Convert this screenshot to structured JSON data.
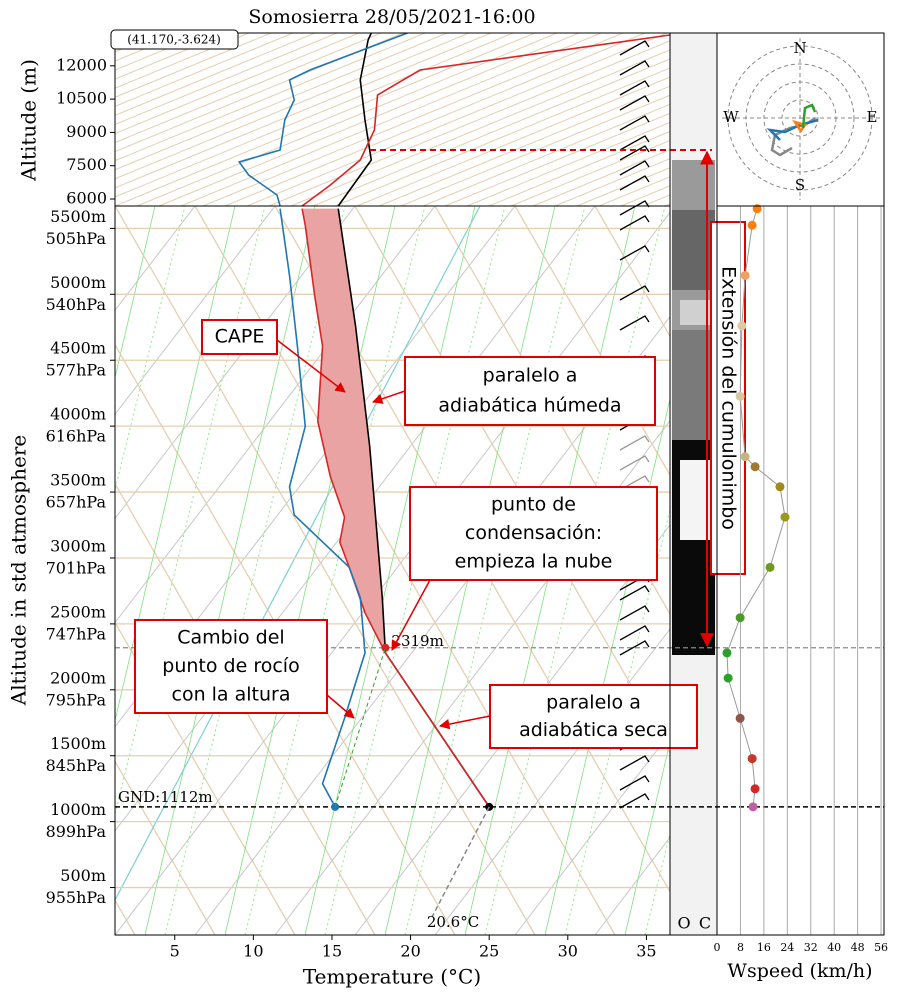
{
  "chart_data": [
    {
      "type": "skewt",
      "title": "Somosierra 28/05/2021-16:00",
      "location_label": "(41.170,-3.624)",
      "xlabel": "Temperature (°C)",
      "ylabel": "Altitude in std atmosphere",
      "xlim": [
        1.2,
        36.5
      ],
      "xticks": [
        5,
        10,
        15,
        20,
        25,
        30,
        35
      ],
      "ylim": [
        140,
        5670
      ],
      "yticks": [
        {
          "value": 500,
          "label": "500m"
        },
        {
          "value": 1000,
          "label": "1000m"
        },
        {
          "value": 1500,
          "label": "1500m"
        },
        {
          "value": 2000,
          "label": "2000m"
        },
        {
          "value": 2500,
          "label": "2500m"
        },
        {
          "value": 3000,
          "label": "3000m"
        },
        {
          "value": 3500,
          "label": "3500m"
        },
        {
          "value": 4000,
          "label": "4000m"
        },
        {
          "value": 4500,
          "label": "4500m"
        },
        {
          "value": 5000,
          "label": "5000m"
        },
        {
          "value": 5500,
          "label": "5500m"
        }
      ],
      "ytick_pressure": [
        "955hPa",
        "899hPa",
        "845hPa",
        "795hPa",
        "747hPa",
        "701hPa",
        "657hPa",
        "616hPa",
        "577hPa",
        "540hPa",
        "505hPa"
      ],
      "series": [
        {
          "color": "#000000",
          "x": [
            25.0,
            18.4,
            18.2,
            17.4,
            16.5,
            15.4
          ],
          "y": [
            1112,
            2280,
            2700,
            3845,
            4760,
            5650
          ]
        },
        {
          "color": "#d62728",
          "x": [
            25.0,
            18.4,
            17.1,
            16.1,
            15.5,
            15.8,
            14.9,
            14.1,
            14.4,
            13.9,
            13.3,
            13.1
          ],
          "y": [
            1112,
            2280,
            2585,
            2929,
            3120,
            3310,
            3616,
            4036,
            4608,
            4990,
            5524,
            5650
          ]
        },
        {
          "color": "#1f77b4",
          "x": [
            15.2,
            14.4,
            15.8,
            17.1,
            16.8,
            16.1,
            12.6,
            12.3,
            13.3,
            12.8,
            12.3,
            11.7
          ],
          "y": [
            1112,
            1288,
            1784,
            2280,
            2700,
            2929,
            3326,
            3540,
            3998,
            4608,
            5143,
            5650
          ]
        }
      ],
      "cape_color": "#eaa3a3",
      "ground": {
        "altitude": 1112,
        "label": "GND:1112m"
      },
      "lcl": {
        "altitude": 2319,
        "temperature": 18.4,
        "label": "2319m"
      },
      "surface_temp": {
        "value": 20.6,
        "label": "20.6°C"
      },
      "column_labels": [
        "O",
        "C"
      ],
      "annotations": [
        {
          "lines": [
            "CAPE"
          ]
        },
        {
          "lines": [
            "paralelo a",
            "adiabática húmeda"
          ]
        },
        {
          "lines": [
            "punto de",
            "condensación:",
            "empieza la nube"
          ]
        },
        {
          "lines": [
            "Cambio del",
            "punto de rocío",
            "con la altura"
          ]
        },
        {
          "lines": [
            "paralelo a",
            "adiabática seca"
          ]
        },
        {
          "lines": [
            "Extensión del cumulonimbo"
          ]
        }
      ]
    },
    {
      "type": "skewt_upper",
      "ylabel": "Altitude (m)",
      "ylim": [
        5685,
        13478
      ],
      "yticks": [
        6000,
        7500,
        9000,
        10500,
        12000
      ],
      "series": [
        {
          "color": "#000000",
          "x": [
            15.4,
            17.5,
            17.1,
            16.8,
            17.3,
            17.5
          ],
          "y": [
            5685,
            7757,
            9559,
            11361,
            13163,
            13478
          ]
        },
        {
          "color": "#d62728",
          "x": [
            13.1,
            14.9,
            16.8,
            17.7,
            17.9,
            20.6,
            36.5
          ],
          "y": [
            5685,
            6631,
            7757,
            9108,
            10685,
            11811,
            13388
          ]
        },
        {
          "color": "#1f77b4",
          "x": [
            11.7,
            11.5,
            9.7,
            9.1,
            11.7,
            12.0,
            12.6,
            12.3,
            13.6,
            19.8
          ],
          "y": [
            5685,
            6180,
            7081,
            7667,
            8207,
            9559,
            10460,
            11361,
            11811,
            13478
          ]
        }
      ],
      "cloud_top": 8207
    },
    {
      "type": "wind_profile",
      "xlabel": "Wspeed (km/h)",
      "xlim": [
        0,
        57
      ],
      "xticks": [
        0,
        8,
        16,
        24,
        32,
        40,
        48,
        56
      ],
      "values": [
        12.3,
        13.0,
        12.0,
        7.9,
        3.8,
        3.4,
        7.9,
        18.1,
        23.2,
        21.5,
        13.0,
        9.6,
        7.9,
        8.5,
        9.6,
        12.0,
        13.7
      ],
      "altitudes": [
        1112,
        1249,
        1478,
        1784,
        2089,
        2280,
        2547,
        2929,
        3310,
        3540,
        3692,
        3768,
        4226,
        4761,
        5143,
        5524,
        5650
      ],
      "colors": [
        "#c060a0",
        "#d62728",
        "#c0392b",
        "#8c564b",
        "#2ca02c",
        "#2ca02c",
        "#4a9a2a",
        "#6e9a20",
        "#9a9a1a",
        "#a08a20",
        "#a07830",
        "#c8b480",
        "#d8c8a0",
        "#e0c8a0",
        "#f0a060",
        "#ff7f0e",
        "#ff7f0e"
      ]
    },
    {
      "type": "hodograph",
      "labels": [
        "N",
        "E",
        "S",
        "W"
      ]
    }
  ]
}
